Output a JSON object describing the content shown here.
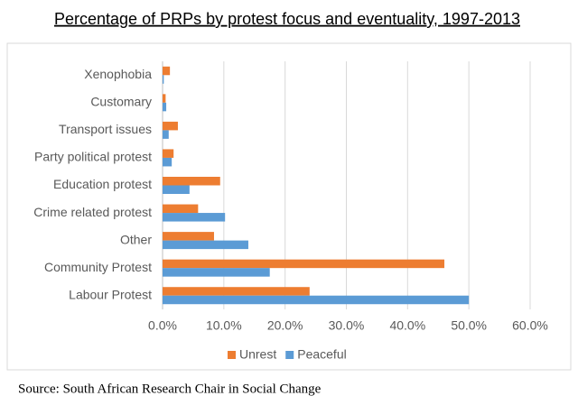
{
  "chart_data": {
    "type": "hbar",
    "title": "Percentage of PRPs by protest focus and eventuality, 1997-2013",
    "source": "Source: South African Research Chair in Social Change",
    "categories": [
      "Xenophobia",
      "Customary",
      "Transport issues",
      "Party political protest",
      "Education protest",
      "Crime related protest",
      "Other",
      "Community Protest",
      "Labour Protest"
    ],
    "series": [
      {
        "name": "Unrest",
        "color": "#ed7d31",
        "values": [
          1.2,
          0.5,
          2.5,
          1.8,
          9.4,
          5.8,
          8.4,
          46.0,
          24.0
        ]
      },
      {
        "name": "Peaceful",
        "color": "#5b9bd5",
        "values": [
          0.2,
          0.6,
          1.0,
          1.5,
          4.4,
          10.2,
          14.0,
          17.5,
          50.0
        ]
      }
    ],
    "xlim": [
      0,
      60
    ],
    "xticks": [
      {
        "value": 0,
        "label": "0.0%"
      },
      {
        "value": 10,
        "label": "10.0%"
      },
      {
        "value": 20,
        "label": "20.0%"
      },
      {
        "value": 30,
        "label": "30.0%"
      },
      {
        "value": 40,
        "label": "40.0%"
      },
      {
        "value": 50,
        "label": "50.0%"
      },
      {
        "value": 60,
        "label": "60.0%"
      }
    ],
    "grid": true,
    "legend": "bottom"
  }
}
